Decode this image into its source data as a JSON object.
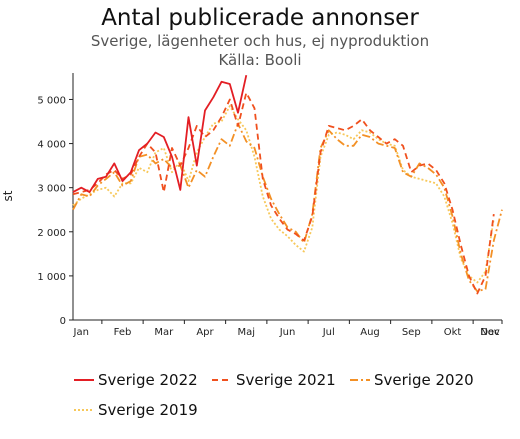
{
  "chart_data": {
    "type": "line",
    "title": "Antal publicerade annonser",
    "subtitle": "Sverige, lägenheter och hus, ej nyproduktion",
    "source": "Källa: Booli",
    "xlabel": "",
    "ylabel": "st",
    "ylim": [
      0,
      5600
    ],
    "yticks": [
      0,
      1000,
      2000,
      3000,
      4000,
      5000
    ],
    "ytick_labels": [
      "0",
      "1 000",
      "2 000",
      "3 000",
      "4 000",
      "5 000"
    ],
    "xlim": [
      1,
      53
    ],
    "x_unit": "week",
    "month_labels": [
      "Jan",
      "Feb",
      "Mar",
      "Apr",
      "Maj",
      "Jun",
      "Jul",
      "Aug",
      "Sep",
      "Okt",
      "Nov",
      "Dec"
    ],
    "month_label_weeks": [
      2,
      7,
      12,
      17,
      22,
      27,
      32,
      37,
      42,
      47,
      52,
      57
    ],
    "grid": false,
    "legend_position": "bottom",
    "series": [
      {
        "name": "Sverige 2022",
        "color": "#e31e24",
        "dash": "solid",
        "x": [
          1,
          2,
          3,
          4,
          5,
          6,
          7,
          8,
          9,
          10,
          11,
          12,
          13,
          14,
          15,
          16,
          17,
          18,
          19,
          20,
          21,
          22,
          23,
          24,
          25,
          26
        ],
        "values": [
          2900,
          3000,
          2900,
          3200,
          3250,
          3550,
          3150,
          3350,
          3850,
          4000,
          4250,
          4150,
          3700,
          2950,
          4600,
          3500,
          4750,
          5050,
          5400,
          5350,
          4700,
          5550,
          null,
          null,
          null,
          null
        ]
      },
      {
        "name": "Sverige 2021",
        "color": "#f0501e",
        "dash": "6,4",
        "x": [
          1,
          2,
          3,
          4,
          5,
          6,
          7,
          8,
          9,
          10,
          11,
          12,
          13,
          14,
          15,
          16,
          17,
          18,
          19,
          20,
          21,
          22,
          23,
          24,
          25,
          26,
          27,
          28,
          29,
          30,
          31,
          32,
          33,
          34,
          35,
          36,
          37,
          38,
          39,
          40,
          41,
          42,
          43,
          44,
          45,
          46,
          47,
          48,
          49,
          50,
          51,
          52,
          53
        ],
        "values": [
          2850,
          2900,
          2950,
          3100,
          3300,
          3400,
          3200,
          3300,
          3700,
          4000,
          3800,
          2900,
          3900,
          3500,
          3900,
          4400,
          4150,
          4300,
          4600,
          5000,
          4400,
          5150,
          4800,
          3200,
          2600,
          2300,
          2050,
          1950,
          1800,
          2350,
          3800,
          4400,
          4350,
          4300,
          4400,
          4550,
          4300,
          4150,
          4000,
          4100,
          3950,
          3350,
          3500,
          3550,
          3400,
          3100,
          2500,
          1700,
          1000,
          600,
          1000,
          2400,
          null
        ]
      },
      {
        "name": "Sverige 2020",
        "color": "#f39025",
        "dash": "8,3,2,3",
        "x": [
          1,
          2,
          3,
          4,
          5,
          6,
          7,
          8,
          9,
          10,
          11,
          12,
          13,
          14,
          15,
          16,
          17,
          18,
          19,
          20,
          21,
          22,
          23,
          24,
          25,
          26,
          27,
          28,
          29,
          30,
          31,
          32,
          33,
          34,
          35,
          36,
          37,
          38,
          39,
          40,
          41,
          42,
          43,
          44,
          45,
          46,
          47,
          48,
          49,
          50,
          51,
          52,
          53
        ],
        "values": [
          2500,
          2850,
          2800,
          3050,
          3200,
          3350,
          3050,
          3150,
          3700,
          3750,
          3550,
          3650,
          3450,
          3500,
          3000,
          3400,
          3250,
          3700,
          4100,
          3950,
          4450,
          4050,
          3900,
          3250,
          2750,
          2400,
          2100,
          2000,
          1750,
          2400,
          3900,
          4300,
          4100,
          3950,
          3950,
          4200,
          4150,
          4000,
          3950,
          3900,
          3350,
          3250,
          3550,
          3450,
          3300,
          3000,
          2350,
          1500,
          900,
          650,
          700,
          1800,
          2500
        ]
      },
      {
        "name": "Sverige 2019",
        "color": "#f7c85a",
        "dash": "2,2",
        "x": [
          1,
          2,
          3,
          4,
          5,
          6,
          7,
          8,
          9,
          10,
          11,
          12,
          13,
          14,
          15,
          16,
          17,
          18,
          19,
          20,
          21,
          22,
          23,
          24,
          25,
          26,
          27,
          28,
          29,
          30,
          31,
          32,
          33,
          34,
          35,
          36,
          37,
          38,
          39,
          40,
          41,
          42,
          43,
          44,
          45,
          46,
          47,
          48,
          49,
          50,
          51,
          52,
          53
        ],
        "values": [
          2600,
          2750,
          2850,
          2950,
          3000,
          2800,
          3100,
          3100,
          3450,
          3350,
          3800,
          3900,
          3350,
          3600,
          3150,
          3800,
          4150,
          4450,
          4500,
          4850,
          4550,
          4300,
          3700,
          2800,
          2300,
          2050,
          1900,
          1700,
          1550,
          2100,
          3700,
          4200,
          4250,
          4200,
          4100,
          4300,
          4250,
          4100,
          4000,
          3950,
          3400,
          3250,
          3200,
          3150,
          3100,
          2800,
          2200,
          1400,
          1000,
          850,
          1100,
          2300,
          null
        ]
      }
    ]
  }
}
